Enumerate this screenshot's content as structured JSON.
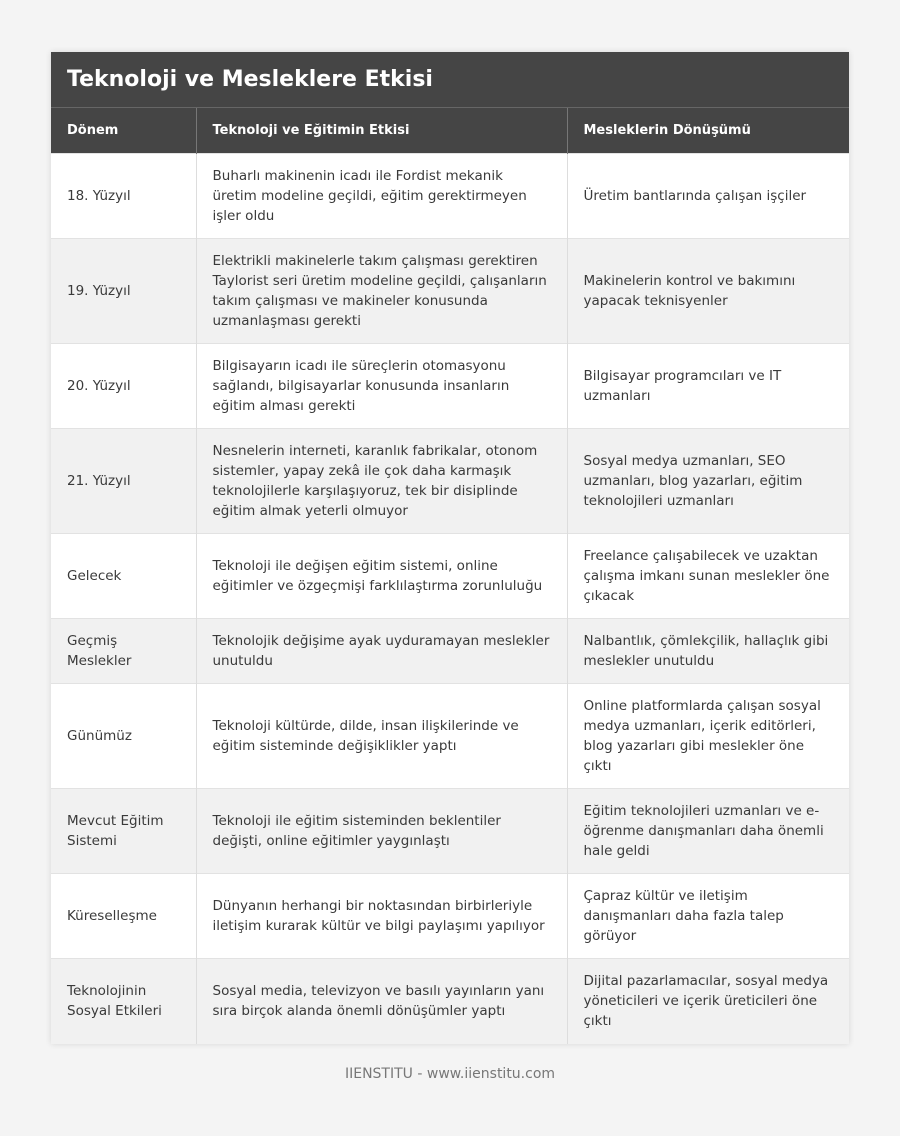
{
  "title": "Teknoloji ve Mesleklere Etkisi",
  "headers": [
    "Dönem",
    "Teknoloji ve Eğitimin Etkisi",
    "Mesleklerin Dönüşümü"
  ],
  "rows": [
    [
      "18. Yüzyıl",
      "Buharlı makinenin icadı ile Fordist mekanik üretim modeline geçildi, eğitim gerektirmeyen işler oldu",
      "Üretim bantlarında çalışan işçiler"
    ],
    [
      "19. Yüzyıl",
      "Elektrikli makinelerle takım çalışması gerektiren Taylorist seri üretim modeline geçildi, çalışanların takım çalışması ve makineler konusunda uzmanlaşması gerekti",
      "Makinelerin kontrol ve bakımını yapacak teknisyenler"
    ],
    [
      "20. Yüzyıl",
      "Bilgisayarın icadı ile süreçlerin otomasyonu sağlandı, bilgisayarlar konusunda insanların eğitim alması gerekti",
      "Bilgisayar programcıları ve IT uzmanları"
    ],
    [
      "21. Yüzyıl",
      "Nesnelerin interneti, karanlık fabrikalar, otonom sistemler, yapay zekâ ile çok daha karmaşık teknolojilerle karşılaşıyoruz, tek bir disiplinde eğitim almak yeterli olmuyor",
      "Sosyal medya uzmanları, SEO uzmanları, blog yazarları, eğitim teknolojileri uzmanları"
    ],
    [
      "Gelecek",
      "Teknoloji ile değişen eğitim sistemi, online eğitimler ve özgeçmişi farklılaştırma zorunluluğu",
      "Freelance çalışabilecek ve uzaktan çalışma imkanı sunan meslekler öne çıkacak"
    ],
    [
      "Geçmiş Meslekler",
      "Teknolojik değişime ayak uyduramayan meslekler unutuldu",
      "Nalbantlık, çömlekçilik, hallaçlık gibi meslekler unutuldu"
    ],
    [
      "Günümüz",
      "Teknoloji kültürde, dilde, insan ilişkilerinde ve eğitim sisteminde değişiklikler yaptı",
      "Online platformlarda çalışan sosyal medya uzmanları, içerik editörleri, blog yazarları gibi meslekler öne çıktı"
    ],
    [
      "Mevcut Eğitim Sistemi",
      "Teknoloji ile eğitim sisteminden beklentiler değişti, online eğitimler yaygınlaştı",
      "Eğitim teknolojileri uzmanları ve e-öğrenme danışmanları daha önemli hale geldi"
    ],
    [
      "Küreselleşme",
      "Dünyanın herhangi bir noktasından birbirleriyle iletişim kurarak kültür ve bilgi paylaşımı yapılıyor",
      "Çapraz kültür ve iletişim danışmanları daha fazla talep görüyor"
    ],
    [
      "Teknolojinin Sosyal Etkileri",
      "Sosyal media, televizyon ve basılı yayınların yanı sıra birçok alanda önemli dönüşümler yaptı",
      "Dijital pazarlamacılar, sosyal medya yöneticileri ve içerik üreticileri öne çıktı"
    ]
  ],
  "footer": "IIENSTITU - www.iienstitu.com"
}
